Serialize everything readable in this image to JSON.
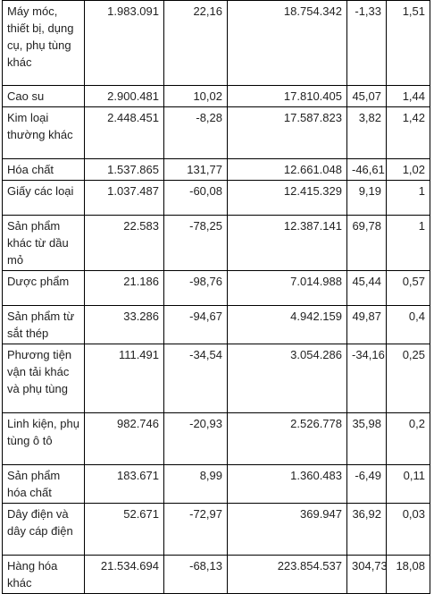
{
  "rows": [
    {
      "name": "Máy móc, thiết bị, dụng cụ, phụ tùng khác",
      "c1": "1.983.091",
      "c2": "22,16",
      "c3": "18.754.342",
      "c4": "-1,33",
      "c5": "1,51"
    },
    {
      "name": "Cao su",
      "c1": "2.900.481",
      "c2": "10,02",
      "c3": "17.810.405",
      "c4": "45,07",
      "c5": "1,44"
    },
    {
      "name": "Kim loại thường khác",
      "c1": "2.448.451",
      "c2": "-8,28",
      "c3": "17.587.823",
      "c4": "3,82",
      "c5": "1,42"
    },
    {
      "name": "Hóa chất",
      "c1": "1.537.865",
      "c2": "131,77",
      "c3": "12.661.048",
      "c4": "-46,61",
      "c5": "1,02"
    },
    {
      "name": "Giấy các loại",
      "c1": "1.037.487",
      "c2": "-60,08",
      "c3": "12.415.329",
      "c4": "9,19",
      "c5": "1"
    },
    {
      "name": "Sản phẩm khác từ dầu mỏ",
      "c1": "22.583",
      "c2": "-78,25",
      "c3": "12.387.141",
      "c4": "69,78",
      "c5": "1"
    },
    {
      "name": "Dược phẩm",
      "c1": "21.186",
      "c2": "-98,76",
      "c3": "7.014.988",
      "c4": "45,44",
      "c5": "0,57"
    },
    {
      "name": "Sản phẩm từ sắt thép",
      "c1": "33.286",
      "c2": "-94,67",
      "c3": "4.942.159",
      "c4": "49,87",
      "c5": "0,4"
    },
    {
      "name": "Phương tiện vận tải khác và phụ tùng",
      "c1": "111.491",
      "c2": "-34,54",
      "c3": "3.054.286",
      "c4": "-34,16",
      "c5": "0,25"
    },
    {
      "name": "Linh kiện, phụ tùng ô tô",
      "c1": "982.746",
      "c2": "-20,93",
      "c3": "2.526.778",
      "c4": "35,98",
      "c5": "0,2"
    },
    {
      "name": "Sản phẩm hóa chất",
      "c1": "183.671",
      "c2": "8,99",
      "c3": "1.360.483",
      "c4": "-6,49",
      "c5": "0,11"
    },
    {
      "name": "Dây điện và dây cáp điện",
      "c1": "52.671",
      "c2": "-72,97",
      "c3": "369.947",
      "c4": "36,92",
      "c5": "0,03"
    },
    {
      "name": "Hàng hóa khác",
      "c1": "21.534.694",
      "c2": "-68,13",
      "c3": "223.854.537",
      "c4": "304,73",
      "c5": "18,08"
    }
  ]
}
